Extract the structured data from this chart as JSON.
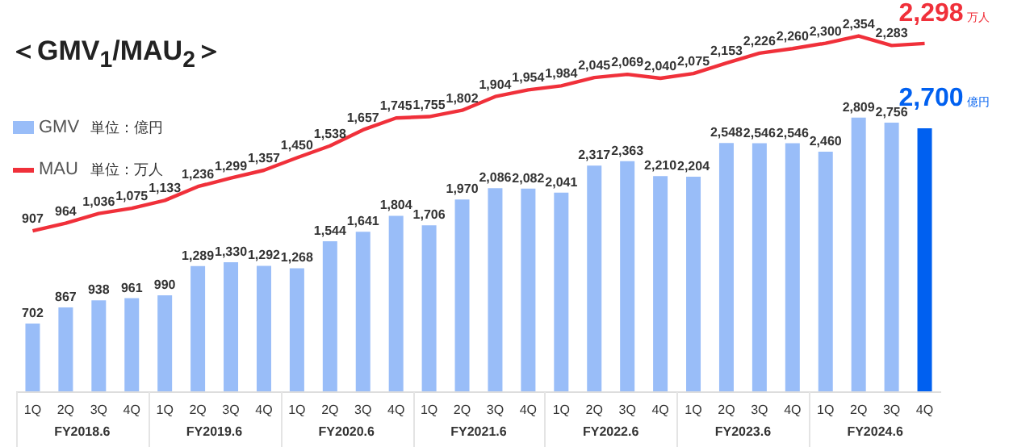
{
  "chart_data": {
    "type": "bar",
    "title": "＜GMV$_{1}$/MAU$_{2}$＞",
    "categories": [
      "1Q",
      "2Q",
      "3Q",
      "4Q",
      "1Q",
      "2Q",
      "3Q",
      "4Q",
      "1Q",
      "2Q",
      "3Q",
      "4Q",
      "1Q",
      "2Q",
      "3Q",
      "4Q",
      "1Q",
      "2Q",
      "3Q",
      "4Q",
      "1Q",
      "2Q",
      "3Q",
      "4Q",
      "1Q",
      "2Q",
      "3Q",
      "4Q"
    ],
    "series": [
      {
        "name": "GMV",
        "color": "#99bdf8",
        "colors": [
          "#99bdf8",
          "#99bdf8",
          "#99bdf8",
          "#99bdf8",
          "#99bdf8",
          "#99bdf8",
          "#99bdf8",
          "#99bdf8",
          "#99bdf8",
          "#99bdf8",
          "#99bdf8",
          "#99bdf8",
          "#99bdf8",
          "#99bdf8",
          "#99bdf8",
          "#99bdf8",
          "#99bdf8",
          "#99bdf8",
          "#99bdf8",
          "#99bdf8",
          "#99bdf8",
          "#99bdf8",
          "#99bdf8",
          "#99bdf8",
          "#99bdf8",
          "#99bdf8",
          "#99bdf8",
          "#0060f0"
        ],
        "values": [
          702,
          867,
          938,
          961,
          990,
          1289,
          1330,
          1292,
          1268,
          1544,
          1641,
          1804,
          1706,
          1970,
          2086,
          2082,
          2041,
          2317,
          2363,
          2210,
          2204,
          2548,
          2546,
          2546,
          2460,
          2809,
          2756,
          2700
        ],
        "value_labels": [
          "702",
          "867",
          "938",
          "961",
          "990",
          "1,289",
          "1,330",
          "1,292",
          "1,268",
          "1,544",
          "1,641",
          "1,804",
          "1,706",
          "1,970",
          "2,086",
          "2,082",
          "2,041",
          "2,317",
          "2,363",
          "2,210",
          "2,204",
          "2,548",
          "2,546",
          "2,546",
          "2,460",
          "2,809",
          "2,756",
          "2,700"
        ]
      },
      {
        "name": "MAU",
        "type": "line",
        "axis": "y2",
        "color": "#f0303a",
        "marker": "none",
        "line_style": "solid",
        "values": [
          907,
          964,
          1036,
          1075,
          1133,
          1236,
          1299,
          1357,
          1450,
          1538,
          1657,
          1745,
          1755,
          1802,
          1904,
          1954,
          1984,
          2045,
          2069,
          2040,
          2075,
          2153,
          2226,
          2260,
          2300,
          2354,
          2283,
          2298
        ],
        "value_labels": [
          "907",
          "964",
          "1,036",
          "1,075",
          "1,133",
          "1,236",
          "1,299",
          "1,357",
          "1,450",
          "1,538",
          "1,657",
          "1,745",
          "1,755",
          "1,802",
          "1,904",
          "1,954",
          "1,984",
          "2,045",
          "2,069",
          "2,040",
          "2,075",
          "2,153",
          "2,226",
          "2,260",
          "2,300",
          "2,354",
          "2,283",
          "2,298"
        ]
      }
    ],
    "tick_labels": "x",
    "legend": "left",
    "annotations": [
      "単位：億円",
      "単位：万人",
      "万人",
      "億円",
      "FY2018.6",
      "FY2019.6",
      "FY2020.6",
      "FY2021.6",
      "FY2022.6",
      "FY2023.6",
      "FY2024.6"
    ]
  }
}
